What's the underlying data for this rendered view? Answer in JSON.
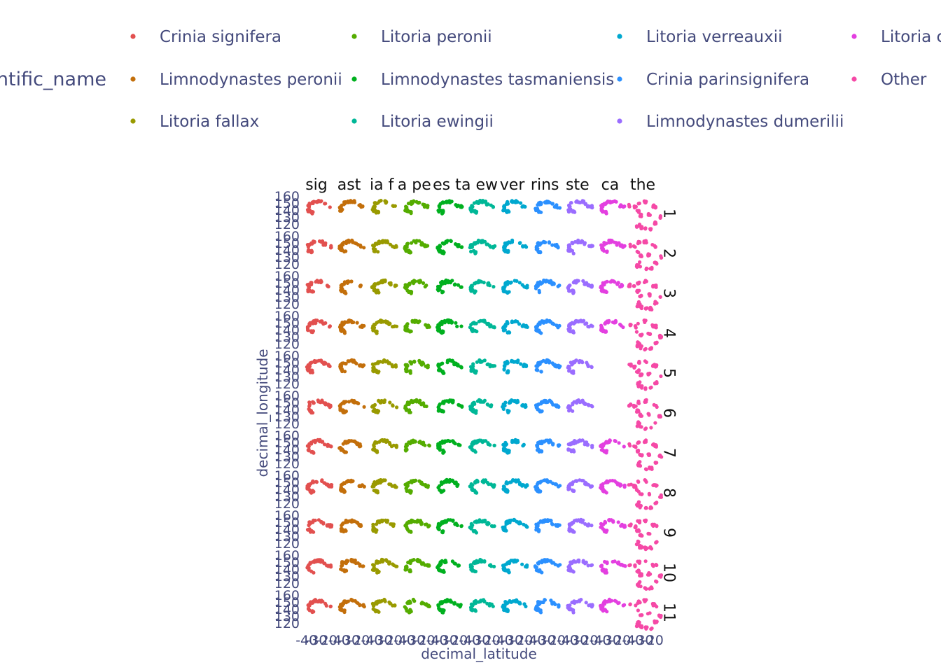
{
  "chart_data": {
    "type": "scatter",
    "xlabel": "decimal_latitude",
    "ylabel": "decimal_longitude",
    "legend": {
      "title": "scientific_name",
      "position": "top",
      "items": [
        {
          "name": "Crinia signifera",
          "color": "#e2504f"
        },
        {
          "name": "Limnodynastes peronii",
          "color": "#c36f0b"
        },
        {
          "name": "Litoria fallax",
          "color": "#999a00"
        },
        {
          "name": "Litoria peronii",
          "color": "#54ac00"
        },
        {
          "name": "Limnodynastes tasmaniensis",
          "color": "#00b01f"
        },
        {
          "name": "Litoria ewingii",
          "color": "#00b797"
        },
        {
          "name": "Litoria verreauxii",
          "color": "#00a8cf"
        },
        {
          "name": "Crinia parinsignifera",
          "color": "#2b90ff"
        },
        {
          "name": "Limnodynastes dumerilii",
          "color": "#9a6dff"
        },
        {
          "name": "Litoria c",
          "color": "#e33fe0"
        },
        {
          "name": "Other",
          "color": "#f549a6"
        }
      ]
    },
    "column_facets": [
      "sig",
      "ast",
      "ia f",
      "a pe",
      "es t",
      "a ew",
      "ver",
      "rins",
      "ste",
      "ca",
      "the"
    ],
    "row_facets": [
      "1",
      "2",
      "3",
      "4",
      "5",
      "6",
      "7",
      "8",
      "9",
      "10",
      "11"
    ],
    "y_ticks": [
      120,
      130,
      140,
      150,
      160
    ],
    "x_ticks": [
      -40,
      -30,
      -20
    ],
    "xlim": [
      -44,
      -16
    ],
    "ylim": [
      112,
      160
    ],
    "grid": false,
    "presence": [
      [
        1,
        1,
        1,
        1,
        1,
        1,
        1,
        1,
        1,
        1,
        1
      ],
      [
        1,
        1,
        1,
        1,
        1,
        1,
        1,
        1,
        1,
        1,
        1
      ],
      [
        1,
        1,
        1,
        1,
        1,
        1,
        1,
        1,
        1,
        1,
        1
      ],
      [
        1,
        1,
        1,
        1,
        1,
        1,
        1,
        1,
        1,
        1,
        1
      ],
      [
        1,
        1,
        1,
        1,
        1,
        1,
        1,
        1,
        1,
        0,
        1
      ],
      [
        1,
        1,
        1,
        1,
        1,
        1,
        1,
        1,
        1,
        0,
        1
      ],
      [
        1,
        1,
        1,
        1,
        1,
        1,
        1,
        1,
        1,
        1,
        1
      ],
      [
        1,
        1,
        1,
        1,
        1,
        1,
        1,
        1,
        1,
        1,
        1
      ],
      [
        1,
        1,
        1,
        1,
        1,
        1,
        1,
        1,
        1,
        1,
        1
      ],
      [
        1,
        1,
        1,
        1,
        1,
        1,
        1,
        1,
        1,
        1,
        1
      ],
      [
        1,
        1,
        1,
        1,
        1,
        1,
        1,
        1,
        1,
        1,
        1
      ]
    ]
  }
}
